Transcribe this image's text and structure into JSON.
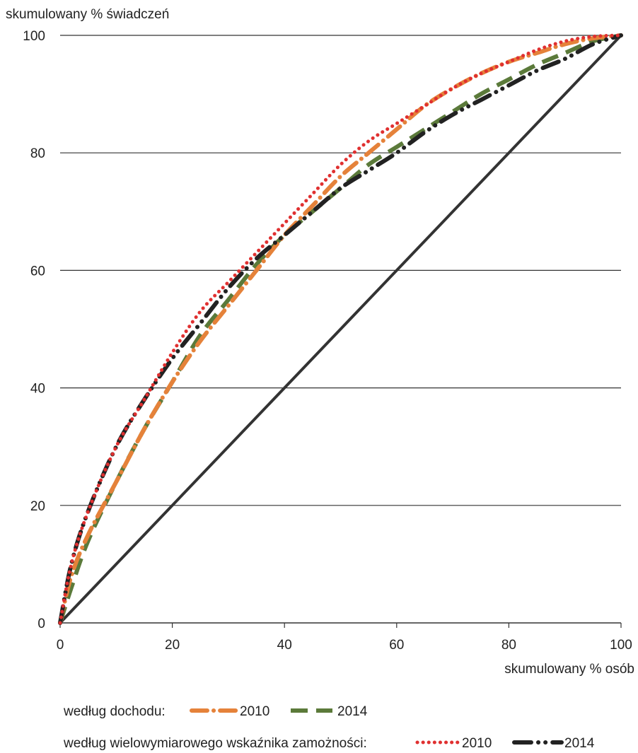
{
  "chart_data": {
    "type": "line",
    "title": "",
    "ylabel": "skumulowany % świadczeń",
    "xlabel": "skumulowany % osób",
    "xlim": [
      0,
      100
    ],
    "ylim": [
      0,
      100
    ],
    "xticks": [
      "0",
      "20",
      "40",
      "60",
      "80",
      "100"
    ],
    "yticks": [
      "0",
      "20",
      "40",
      "60",
      "80",
      "100"
    ],
    "grid": "horizontal",
    "legend_position": "bottom",
    "legend_groups": [
      {
        "label": "według dochodu:",
        "entries": [
          "2010",
          "2014"
        ]
      },
      {
        "label": "według wielowymiarowego wskaźnika zamożności:",
        "entries": [
          "2010",
          "2014"
        ]
      }
    ],
    "colors": {
      "income_2010": "#e5823a",
      "income_2014": "#5b7a3a",
      "wealth_2010": "#e03030",
      "wealth_2014": "#222222",
      "equality": "#333333"
    },
    "x": [
      0,
      2,
      5,
      10,
      15,
      20,
      25,
      30,
      35,
      40,
      45,
      50,
      55,
      60,
      65,
      70,
      75,
      80,
      85,
      90,
      95,
      100
    ],
    "series": [
      {
        "name": "2010",
        "legend_group": 0,
        "style": "dash-dot-orange",
        "values": [
          0,
          8,
          15,
          24,
          33,
          41,
          48,
          54,
          60,
          66,
          71,
          76,
          80,
          84,
          88,
          91,
          93.5,
          95.5,
          97,
          98.5,
          99.5,
          100
        ]
      },
      {
        "name": "2014",
        "legend_group": 0,
        "style": "dash-green",
        "values": [
          0,
          6,
          14,
          24,
          33,
          41,
          49,
          55,
          61,
          66,
          70,
          74,
          78,
          81,
          84,
          87,
          90,
          92.5,
          95,
          97,
          99,
          100
        ]
      },
      {
        "name": "2010",
        "legend_group": 1,
        "style": "dots-red",
        "values": [
          0,
          10,
          19,
          30,
          38,
          46,
          53,
          58,
          63,
          68,
          73,
          78,
          82,
          85,
          88,
          91,
          93.5,
          95.5,
          97.5,
          99,
          99.8,
          100
        ]
      },
      {
        "name": "2014",
        "legend_group": 1,
        "style": "dash-dot-black",
        "values": [
          0,
          10,
          19,
          30,
          38,
          45,
          51,
          57,
          62,
          66,
          70,
          74,
          77,
          80,
          83.5,
          86.5,
          89,
          91.5,
          94,
          96,
          98.5,
          100
        ]
      },
      {
        "name": "",
        "style": "equality-line",
        "values": [
          0,
          2,
          5,
          10,
          15,
          20,
          25,
          30,
          35,
          40,
          45,
          50,
          55,
          60,
          65,
          70,
          75,
          80,
          85,
          90,
          95,
          100
        ]
      }
    ]
  }
}
